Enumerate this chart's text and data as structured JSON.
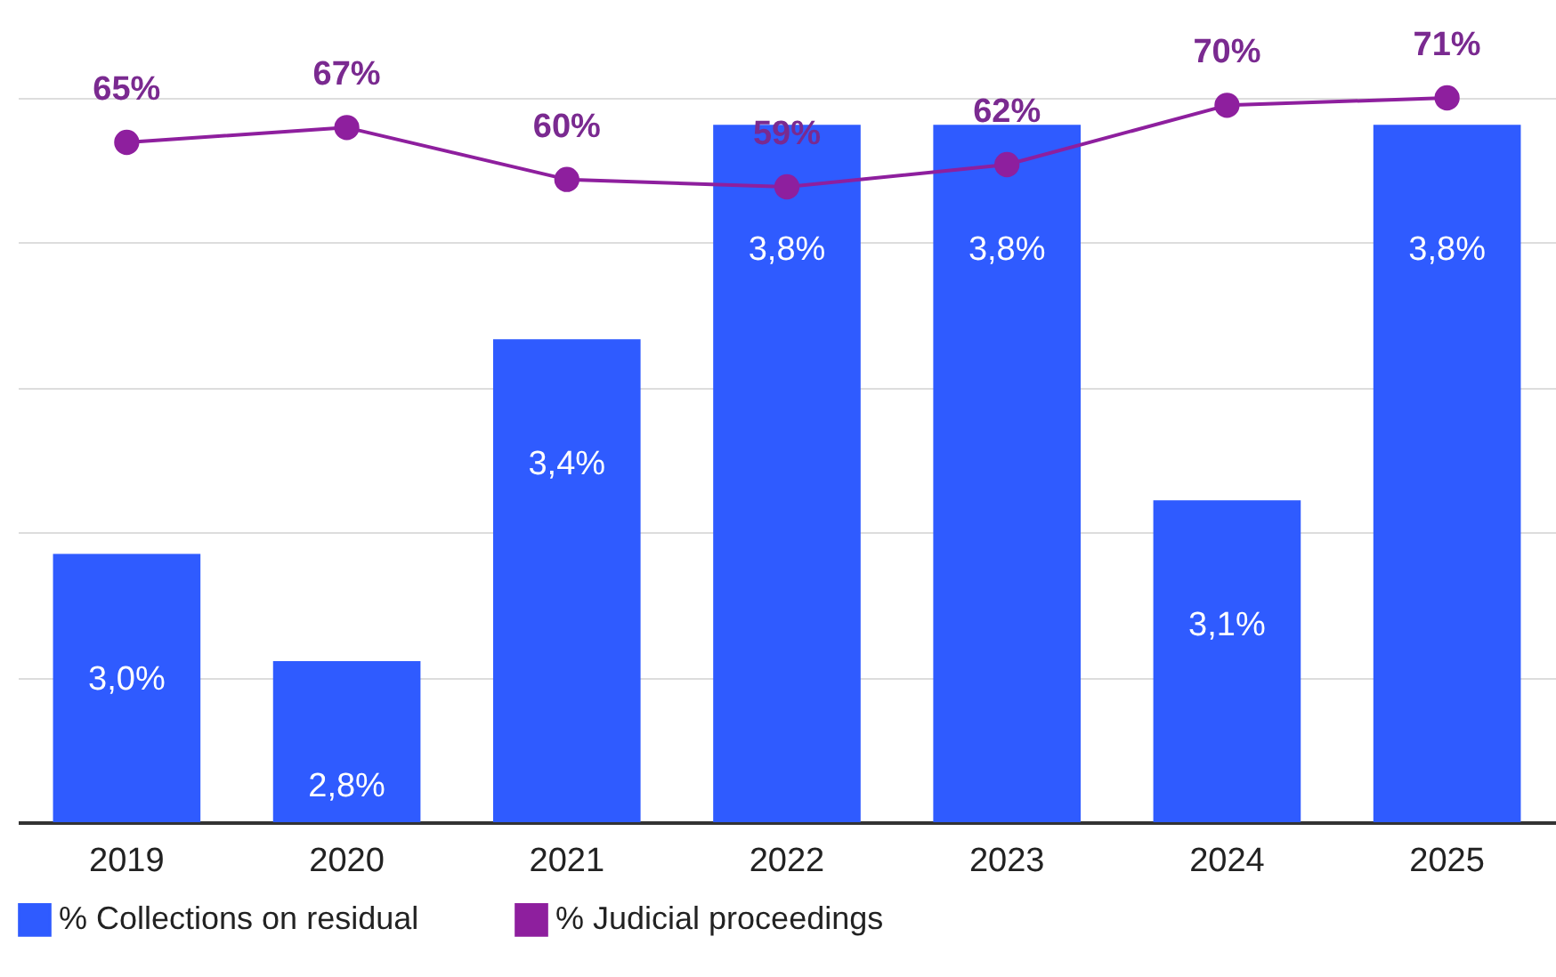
{
  "chart_data": {
    "type": "bar",
    "categories": [
      "2019",
      "2020",
      "2021",
      "2022",
      "2023",
      "2024",
      "2025"
    ],
    "series": [
      {
        "name": "% Collections on residual",
        "color": "#2f5bff",
        "values": [
          3.0,
          2.8,
          3.4,
          3.8,
          3.8,
          3.1,
          3.8
        ],
        "value_labels": [
          "3,0%",
          "2,8%",
          "3,4%",
          "3,8%",
          "3,8%",
          "3,1%",
          "3,8%"
        ]
      },
      {
        "name": "% Judicial proceedings",
        "type": "line",
        "axis": "y2",
        "color": "#8e1f9e",
        "values": [
          65,
          67,
          60,
          59,
          62,
          70,
          71
        ],
        "value_labels": [
          "65%",
          "67%",
          "60%",
          "59%",
          "62%",
          "70%",
          "71%"
        ]
      }
    ],
    "ylim": [
      2.5,
      3.85
    ],
    "yticks": [
      {
        "value": 2.5,
        "label": null
      },
      {
        "value": 2.77,
        "label": null
      },
      {
        "value": 3.04,
        "label": null
      },
      {
        "value": 3.31,
        "label": null
      },
      {
        "value": 3.58,
        "label": null
      },
      {
        "value": 3.85,
        "label": null
      }
    ],
    "grid": "y",
    "legend": "bottom",
    "marker": "circle",
    "tick_labels": "x"
  }
}
